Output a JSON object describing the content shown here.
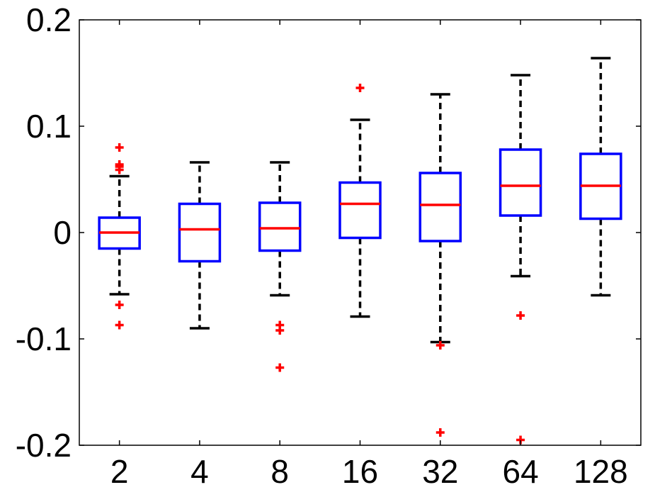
{
  "chart_data": {
    "type": "box",
    "categories": [
      "2",
      "4",
      "8",
      "16",
      "32",
      "64",
      "128"
    ],
    "ylim": [
      -0.2,
      0.2
    ],
    "yticks": [
      -0.2,
      -0.1,
      0,
      0.1,
      0.2
    ],
    "ytick_labels": [
      "-0.2",
      "-0.1",
      "0",
      "0.1",
      "0.2"
    ],
    "grid": false,
    "colors": {
      "box": "#0000ff",
      "median": "#ff0000",
      "whisker": "#000000",
      "outlier": "#ff0000",
      "axis": "#000000"
    },
    "boxes": [
      {
        "category": "2",
        "q1": -0.015,
        "median": 0.0,
        "q3": 0.014,
        "whisker_low": -0.058,
        "whisker_high": 0.053,
        "outliers": [
          0.08,
          0.064,
          0.062,
          0.059,
          -0.068,
          -0.087
        ]
      },
      {
        "category": "4",
        "q1": -0.027,
        "median": 0.003,
        "q3": 0.027,
        "whisker_low": -0.09,
        "whisker_high": 0.066,
        "outliers": []
      },
      {
        "category": "8",
        "q1": -0.017,
        "median": 0.004,
        "q3": 0.028,
        "whisker_low": -0.059,
        "whisker_high": 0.066,
        "outliers": [
          -0.087,
          -0.092,
          -0.127
        ]
      },
      {
        "category": "16",
        "q1": -0.005,
        "median": 0.027,
        "q3": 0.047,
        "whisker_low": -0.079,
        "whisker_high": 0.106,
        "outliers": [
          0.136
        ]
      },
      {
        "category": "32",
        "q1": -0.008,
        "median": 0.026,
        "q3": 0.056,
        "whisker_low": -0.103,
        "whisker_high": 0.13,
        "outliers": [
          -0.106,
          -0.188
        ]
      },
      {
        "category": "64",
        "q1": 0.016,
        "median": 0.044,
        "q3": 0.078,
        "whisker_low": -0.041,
        "whisker_high": 0.148,
        "outliers": [
          -0.078,
          -0.195
        ]
      },
      {
        "category": "128",
        "q1": 0.013,
        "median": 0.044,
        "q3": 0.074,
        "whisker_low": -0.059,
        "whisker_high": 0.164,
        "outliers": []
      }
    ]
  }
}
